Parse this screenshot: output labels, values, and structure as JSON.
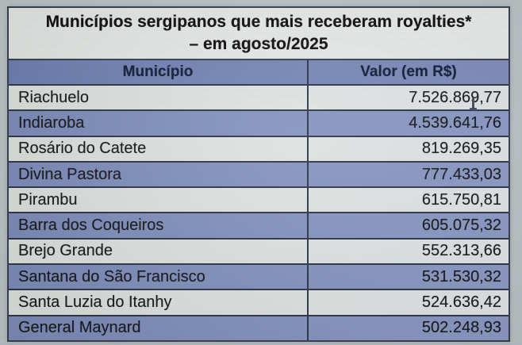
{
  "title": {
    "line1": "Municípios sergipanos que mais receberam royalties*",
    "line2": "– em agosto/2025"
  },
  "table": {
    "columns": [
      "Município",
      "Valor (em R$)"
    ],
    "rows": [
      {
        "municipio": "Riachuelo",
        "valor": "7.526.869,77"
      },
      {
        "municipio": "Indiaroba",
        "valor": "4.539.641,76"
      },
      {
        "municipio": "Rosário do Catete",
        "valor": "819.269,35"
      },
      {
        "municipio": "Divina Pastora",
        "valor": "777.433,03"
      },
      {
        "municipio": "Pirambu",
        "valor": "615.750,81"
      },
      {
        "municipio": "Barra dos Coqueiros",
        "valor": "605.075,32"
      },
      {
        "municipio": "Brejo Grande",
        "valor": "552.313,66"
      },
      {
        "municipio": "Santana do São Francisco",
        "valor": "531.530,32"
      },
      {
        "municipio": "Santa Luzia do Itanhy",
        "valor": "524.636,42"
      },
      {
        "municipio": "General Maynard",
        "valor": "502.248,93"
      }
    ]
  },
  "chart_data": {
    "type": "table",
    "title": "Municípios sergipanos que mais receberam royalties* – em agosto/2025",
    "columns": [
      "Município",
      "Valor (em R$)"
    ],
    "rows": [
      [
        "Riachuelo",
        "7.526.869,77"
      ],
      [
        "Indiaroba",
        "4.539.641,76"
      ],
      [
        "Rosário do Catete",
        "819.269,35"
      ],
      [
        "Divina Pastora",
        "777.433,03"
      ],
      [
        "Pirambu",
        "615.750,81"
      ],
      [
        "Barra dos Coqueiros",
        "605.075,32"
      ],
      [
        "Brejo Grande",
        "552.313,66"
      ],
      [
        "Santana do São Francisco",
        "531.530,32"
      ],
      [
        "Santa Luzia do Itanhy",
        "524.636,42"
      ],
      [
        "General Maynard",
        "502.248,93"
      ]
    ],
    "values_numeric_brl": [
      7526869.77,
      4539641.76,
      819269.35,
      777433.03,
      615750.81,
      605075.32,
      552313.66,
      531530.32,
      524636.42,
      502248.93
    ]
  },
  "colors": {
    "header_bg": "#7081b1",
    "row_blue": "#8191bf",
    "row_light": "#dfe4e1",
    "title_bg": "#e8ebe7",
    "border": "#2b3345",
    "page_margin": "#bdc3c6"
  }
}
